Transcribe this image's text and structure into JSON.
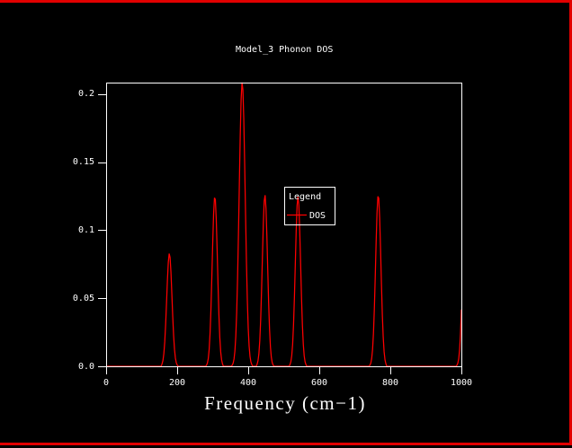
{
  "window": {
    "background": "#000000",
    "border_color": "#e10000",
    "title": "Model_3 Phonon DOS"
  },
  "chart_data": {
    "type": "line",
    "title": "Model_3 Phonon DOS",
    "xlabel": "Frequency (cm−1)",
    "ylabel": "",
    "xlim": [
      0,
      1000
    ],
    "ylim": [
      0,
      0.2085
    ],
    "grid": false,
    "axis_color": "#ffffff",
    "tick_direction": "out",
    "x_ticks": {
      "values": [
        0,
        200,
        400,
        600,
        800,
        1000
      ],
      "labels": [
        "0",
        "200",
        "400",
        "600",
        "800",
        "1000"
      ]
    },
    "y_ticks": {
      "values": [
        0,
        0.05,
        0.1,
        0.15,
        0.2
      ],
      "labels": [
        "0.0",
        "0.05",
        "0.1",
        "0.15",
        "0.2"
      ]
    },
    "legend": {
      "title": "Legend",
      "entries": [
        "DOS"
      ],
      "position": "inside-center",
      "border_color": "#ffffff"
    },
    "series": [
      {
        "name": "DOS",
        "color": "#ff0000",
        "profile": "gaussian",
        "peaks": [
          {
            "center": 178,
            "height": 0.083,
            "sigma": 10.5
          },
          {
            "center": 306,
            "height": 0.125,
            "sigma": 10.5
          },
          {
            "center": 383,
            "height": 0.209,
            "sigma": 12.0
          },
          {
            "center": 447,
            "height": 0.126,
            "sigma": 10.5
          },
          {
            "center": 540,
            "height": 0.125,
            "sigma": 10.5
          },
          {
            "center": 766,
            "height": 0.126,
            "sigma": 10.5
          },
          {
            "center": 1011,
            "height": 0.125,
            "sigma": 10.5,
            "note": "clipped at right frame edge"
          }
        ]
      }
    ]
  }
}
